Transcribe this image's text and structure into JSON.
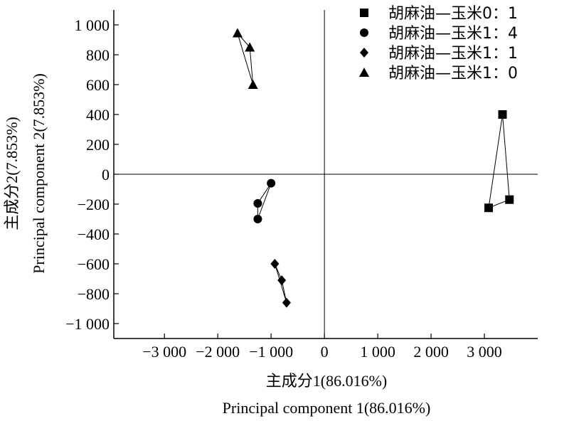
{
  "chart_data": {
    "type": "scatter",
    "xlabel": [
      "主成分1(86.016%)",
      "Principal component 1(86.016%)"
    ],
    "ylabel": [
      "主成分2(7.853%)",
      "Principal component 2(7.853%)"
    ],
    "xlim": [
      -3950,
      4000
    ],
    "ylim": [
      -1100,
      1100
    ],
    "xticks": [
      -3000,
      -2000,
      -1000,
      0,
      1000,
      2000,
      3000
    ],
    "xtick_labels": [
      "−3 000",
      "−2 000",
      "−1 000",
      "0",
      "1 000",
      "2 000",
      "3 000"
    ],
    "yticks": [
      1000,
      800,
      600,
      400,
      200,
      0,
      -200,
      -400,
      -600,
      -800,
      -1000
    ],
    "ytick_labels": [
      "1 000",
      "800",
      "600",
      "400",
      "200",
      "0",
      "−200",
      "−400",
      "−600",
      "−800",
      "−1 000"
    ],
    "grid": false,
    "legend_position": "top-right",
    "series": [
      {
        "name": "胡麻油—玉米0：1",
        "marker": "square",
        "points": [
          [
            3340,
            400
          ],
          [
            3080,
            -225
          ],
          [
            3470,
            -170
          ]
        ]
      },
      {
        "name": "胡麻油—玉米1：4",
        "marker": "circle",
        "points": [
          [
            -1000,
            -60
          ],
          [
            -1250,
            -195
          ],
          [
            -1250,
            -300
          ]
        ]
      },
      {
        "name": "胡麻油—玉米1：1",
        "marker": "diamond",
        "points": [
          [
            -930,
            -600
          ],
          [
            -800,
            -710
          ],
          [
            -710,
            -860
          ]
        ]
      },
      {
        "name": "胡麻油—玉米1：0",
        "marker": "triangle",
        "points": [
          [
            -1630,
            945
          ],
          [
            -1400,
            850
          ],
          [
            -1340,
            600
          ]
        ]
      }
    ]
  }
}
